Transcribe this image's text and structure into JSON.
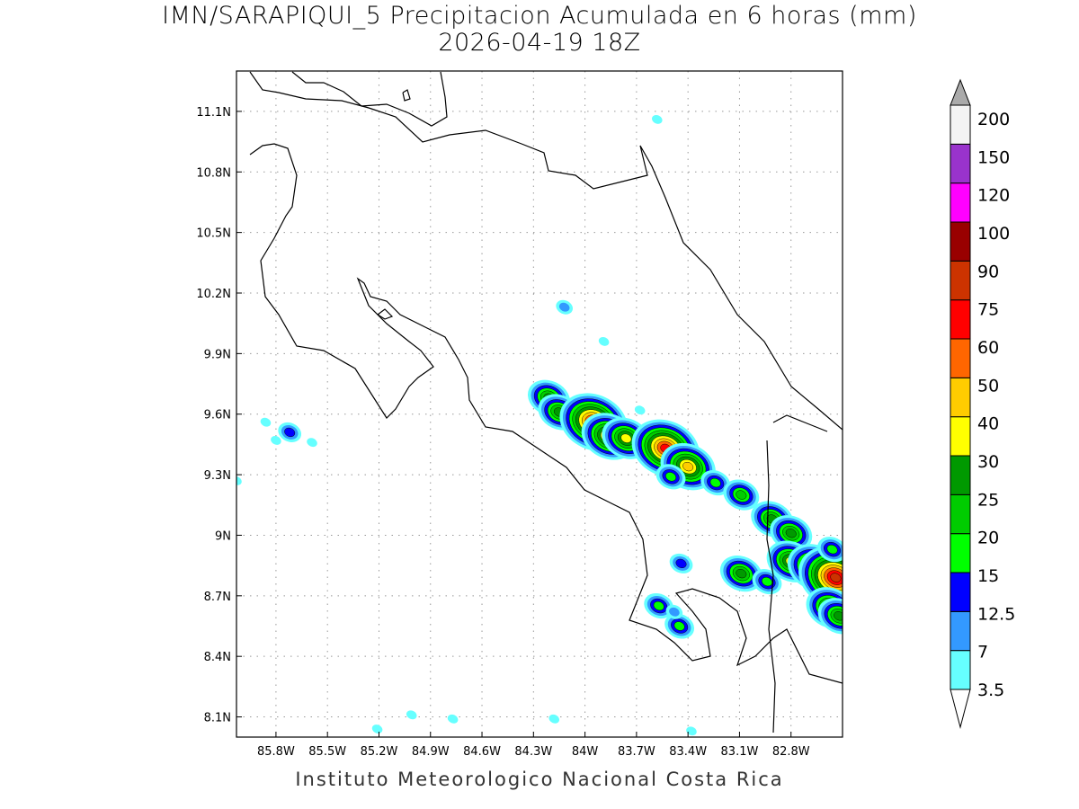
{
  "title": {
    "line1": "IMN/SARAPIQUI_5 Precipitacion Acumulada en 6 horas (mm)",
    "line2": "2026-04-19 18Z"
  },
  "footer": "Instituto Meteorologico Nacional Costa Rica",
  "map": {
    "lon_range": [
      -86.03,
      -82.5
    ],
    "lat_range": [
      8.0,
      11.3
    ],
    "lon_ticks": [
      {
        "v": -85.8,
        "label": "85.8W"
      },
      {
        "v": -85.5,
        "label": "85.5W"
      },
      {
        "v": -85.2,
        "label": "85.2W"
      },
      {
        "v": -84.9,
        "label": "84.9W"
      },
      {
        "v": -84.6,
        "label": "84.6W"
      },
      {
        "v": -84.3,
        "label": "84.3W"
      },
      {
        "v": -84.0,
        "label": "84W"
      },
      {
        "v": -83.7,
        "label": "83.7W"
      },
      {
        "v": -83.4,
        "label": "83.4W"
      },
      {
        "v": -83.1,
        "label": "83.1W"
      },
      {
        "v": -82.8,
        "label": "82.8W"
      }
    ],
    "lat_ticks": [
      {
        "v": 11.1,
        "label": "11.1N"
      },
      {
        "v": 10.8,
        "label": "10.8N"
      },
      {
        "v": 10.5,
        "label": "10.5N"
      },
      {
        "v": 10.2,
        "label": "10.2N"
      },
      {
        "v": 9.9,
        "label": "9.9N"
      },
      {
        "v": 9.6,
        "label": "9.6N"
      },
      {
        "v": 9.3,
        "label": "9.3N"
      },
      {
        "v": 9.0,
        "label": "9N"
      },
      {
        "v": 8.7,
        "label": "8.7N"
      },
      {
        "v": 8.4,
        "label": "8.4N"
      },
      {
        "v": 8.1,
        "label": "8.1N"
      }
    ]
  },
  "colorbar": {
    "levels": [
      "3.5",
      "7",
      "12.5",
      "15",
      "20",
      "25",
      "30",
      "40",
      "50",
      "60",
      "75",
      "90",
      "100",
      "120",
      "150",
      "200"
    ],
    "colors": [
      "#66ffff",
      "#3399ff",
      "#0000ff",
      "#00ff00",
      "#00cc00",
      "#009900",
      "#ffff00",
      "#ffcc00",
      "#ff6600",
      "#ff0000",
      "#cc3300",
      "#990000",
      "#ff00ff",
      "#9933cc",
      "#f4f4f4"
    ],
    "under_color": "#ffffff",
    "over_color": "#aaaaaa"
  },
  "precip_cells": [
    {
      "lon": -84.21,
      "lat": 9.68,
      "max": 25
    },
    {
      "lon": -84.15,
      "lat": 9.61,
      "max": 25
    },
    {
      "lon": -84.06,
      "lat": 9.57,
      "max": 7
    },
    {
      "lon": -83.95,
      "lat": 9.56,
      "max": 60
    },
    {
      "lon": -83.86,
      "lat": 9.49,
      "max": 40
    },
    {
      "lon": -83.76,
      "lat": 9.48,
      "max": 30
    },
    {
      "lon": -83.53,
      "lat": 9.43,
      "max": 60
    },
    {
      "lon": -83.4,
      "lat": 9.34,
      "max": 40
    },
    {
      "lon": -83.5,
      "lat": 9.29,
      "max": 15
    },
    {
      "lon": -83.24,
      "lat": 9.26,
      "max": 15
    },
    {
      "lon": -83.09,
      "lat": 9.2,
      "max": 20
    },
    {
      "lon": -82.91,
      "lat": 9.08,
      "max": 25
    },
    {
      "lon": -82.8,
      "lat": 9.01,
      "max": 25
    },
    {
      "lon": -82.8,
      "lat": 8.87,
      "max": 30
    },
    {
      "lon": -82.66,
      "lat": 8.84,
      "max": 40
    },
    {
      "lon": -82.54,
      "lat": 8.79,
      "max": 75
    },
    {
      "lon": -83.09,
      "lat": 8.81,
      "max": 25
    },
    {
      "lon": -82.94,
      "lat": 8.77,
      "max": 15
    },
    {
      "lon": -82.57,
      "lat": 8.64,
      "max": 30
    },
    {
      "lon": -82.52,
      "lat": 8.6,
      "max": 25
    },
    {
      "lon": -83.45,
      "lat": 8.55,
      "max": 15
    },
    {
      "lon": -83.57,
      "lat": 8.65,
      "max": 15
    },
    {
      "lon": -83.48,
      "lat": 8.62,
      "max": 7
    },
    {
      "lon": -83.44,
      "lat": 8.86,
      "max": 12.5
    },
    {
      "lon": -82.56,
      "lat": 8.93,
      "max": 15
    },
    {
      "lon": -83.58,
      "lat": 11.06,
      "max": 3.5
    },
    {
      "lon": -83.89,
      "lat": 9.96,
      "max": 3.5
    },
    {
      "lon": -84.12,
      "lat": 10.13,
      "max": 7
    },
    {
      "lon": -85.86,
      "lat": 9.56,
      "max": 3.5
    },
    {
      "lon": -85.72,
      "lat": 9.51,
      "max": 12.5
    },
    {
      "lon": -85.59,
      "lat": 9.46,
      "max": 3.5
    },
    {
      "lon": -85.8,
      "lat": 9.47,
      "max": 3.5
    },
    {
      "lon": -85.01,
      "lat": 8.11,
      "max": 3.5
    },
    {
      "lon": -85.21,
      "lat": 8.04,
      "max": 3.5
    },
    {
      "lon": -84.77,
      "lat": 8.09,
      "max": 3.5
    },
    {
      "lon": -83.38,
      "lat": 8.03,
      "max": 3.5
    },
    {
      "lon": -84.18,
      "lat": 8.09,
      "max": 3.5
    },
    {
      "lon": -83.68,
      "lat": 9.62,
      "max": 3.5
    },
    {
      "lon": -86.03,
      "lat": 9.27,
      "max": 3.5
    }
  ]
}
